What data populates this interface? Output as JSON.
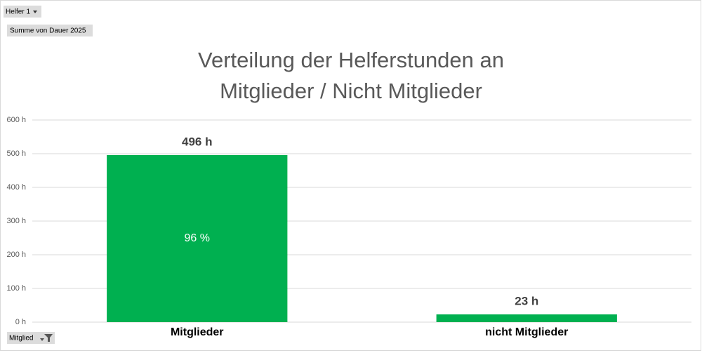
{
  "chart_data": {
    "type": "bar",
    "title": [
      "Verteilung der Helferstunden an",
      "Mitglieder / Nicht Mitglieder"
    ],
    "categories": [
      "Mitglieder",
      "nicht Mitglieder"
    ],
    "values": [
      496,
      23
    ],
    "value_labels": [
      "496 h",
      "23 h"
    ],
    "annotation": "96 %",
    "color": "#00b050",
    "ylim": [
      0,
      600
    ],
    "yticks": [
      {
        "value": 0,
        "label": "0 h"
      },
      {
        "value": 100,
        "label": "100 h"
      },
      {
        "value": 200,
        "label": "200 h"
      },
      {
        "value": 300,
        "label": "300 h"
      },
      {
        "value": 400,
        "label": "400 h"
      },
      {
        "value": 500,
        "label": "500 h"
      },
      {
        "value": 600,
        "label": "600 h"
      }
    ],
    "grid": true,
    "pivot_controls": {
      "filter": "Helfer 1",
      "value_field": "Summe  von Dauer 2025",
      "axis_field": "Mitglied"
    }
  }
}
